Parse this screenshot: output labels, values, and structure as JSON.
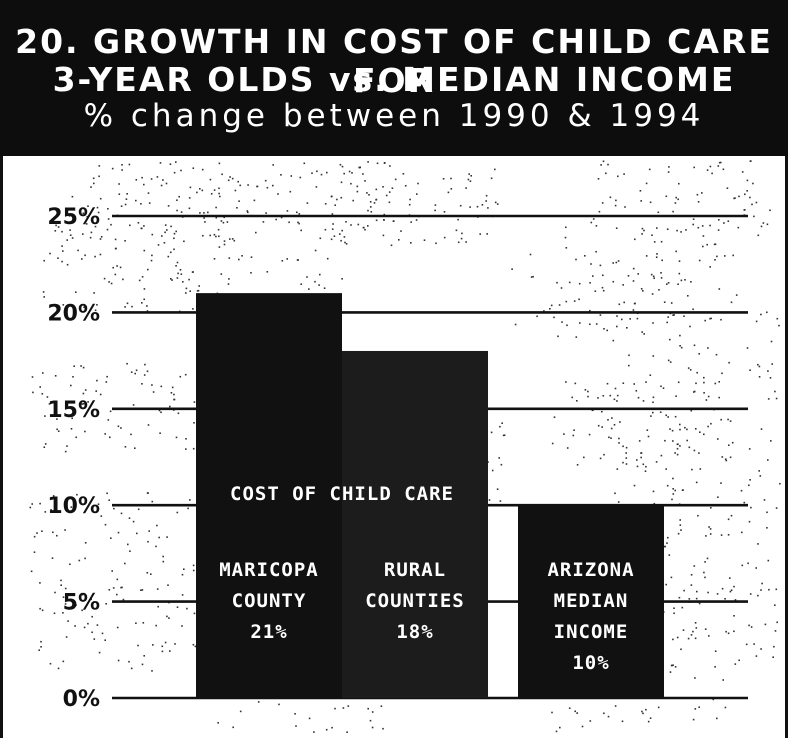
{
  "title": {
    "line1": "20. GROWTH IN COST OF CHILD CARE FOR",
    "line2": "3-YEAR OLDS vs. MEDIAN INCOME",
    "line3": "% change between 1990 & 1994"
  },
  "chart_data": {
    "type": "bar",
    "title": "20. GROWTH IN COST OF CHILD CARE FOR 3-YEAR OLDS vs. MEDIAN INCOME",
    "subtitle": "% change between 1990 & 1994",
    "categories": [
      "MARICOPA COUNTY",
      "RURAL COUNTIES",
      "ARIZONA MEDIAN INCOME"
    ],
    "values": [
      21,
      18,
      10
    ],
    "value_labels": [
      "21%",
      "18%",
      "10%"
    ],
    "group_label": "COST OF CHILD CARE",
    "ylim": [
      0,
      25
    ],
    "yticks": [
      0,
      5,
      10,
      15,
      20,
      25
    ],
    "ytick_labels": [
      "0%",
      "5%",
      "10%",
      "15%",
      "20%",
      "25%"
    ],
    "grid": true,
    "colors": {
      "bar_primary": "#111111",
      "bar_secondary": "#1c1c1c",
      "background": "#ffffff",
      "header": "#0d0d0d"
    }
  }
}
